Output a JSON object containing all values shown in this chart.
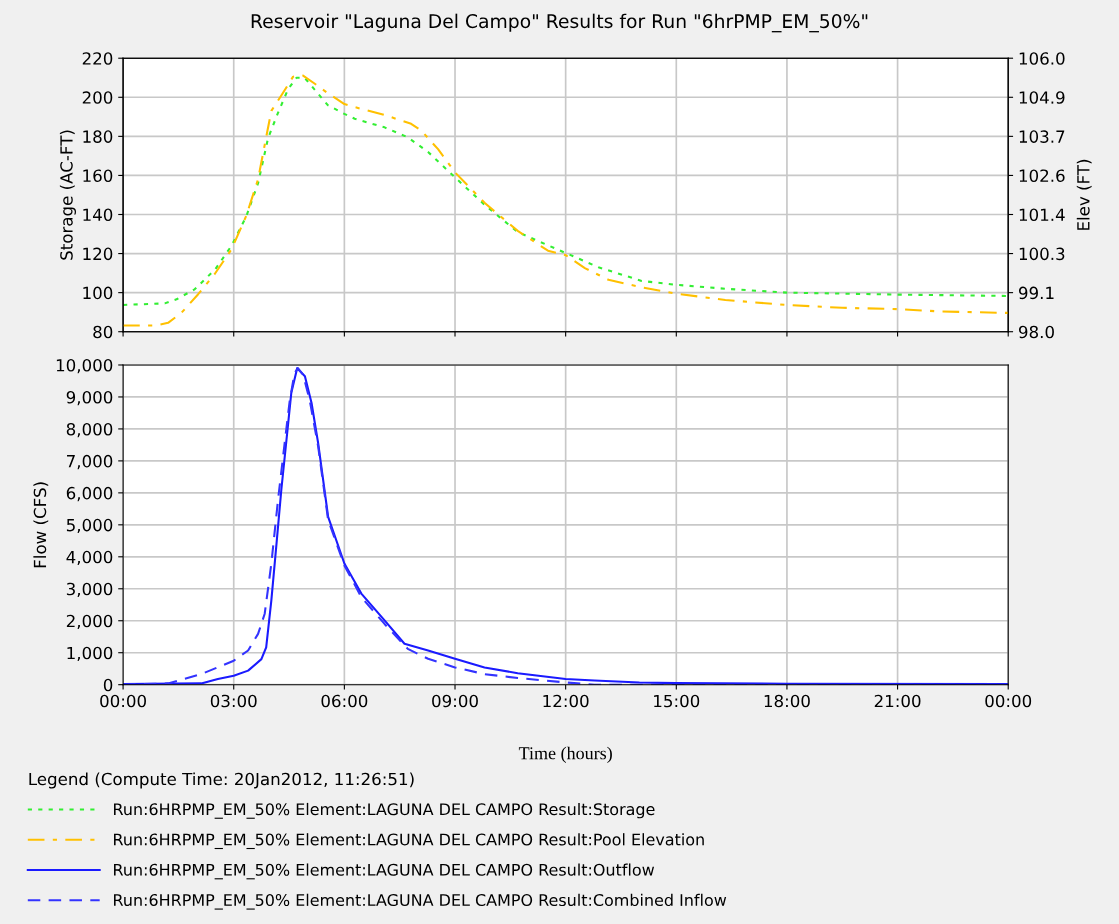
{
  "chart_data": [
    {
      "type": "line",
      "title": "Reservoir \"Laguna Del Campo\" Results for Run \"6hrPMP_EM_50%\"",
      "ylabel": "Storage (AC-FT)",
      "y2label": "Elev (FT)",
      "legend_title": "Legend (Compute Time: 20Jan2012, 11:26:51)",
      "legend": "bottom",
      "grid": true,
      "tick_labels": "y",
      "xlim": [
        0,
        24
      ],
      "xticks": [
        {
          "value": 0,
          "label": null
        },
        {
          "value": 3,
          "label": null
        },
        {
          "value": 6,
          "label": null
        },
        {
          "value": 9,
          "label": null
        },
        {
          "value": 12,
          "label": null
        },
        {
          "value": 15,
          "label": null
        },
        {
          "value": 18,
          "label": null
        },
        {
          "value": 21,
          "label": null
        },
        {
          "value": 24,
          "label": null
        }
      ],
      "ylim": [
        80,
        220
      ],
      "yticks": [
        80,
        100,
        120,
        140,
        160,
        180,
        200,
        220
      ],
      "y2lim": [
        98.0,
        106.0
      ],
      "y2ticks": [
        {
          "value": 98.0,
          "label": "98.0"
        },
        {
          "value": 99.142857,
          "label": "99.1"
        },
        {
          "value": 100.285714,
          "label": "100.3"
        },
        {
          "value": 101.428571,
          "label": "101.4"
        },
        {
          "value": 102.571429,
          "label": "102.6"
        },
        {
          "value": 103.714286,
          "label": "103.7"
        },
        {
          "value": 104.857143,
          "label": "104.9"
        },
        {
          "value": 106.0,
          "label": "106.0"
        }
      ],
      "series": [
        {
          "name": "Run:6HRPMP_EM_50% Element:LAGUNA DEL CAMPO Result:Storage",
          "color": "#33ee33",
          "line_style": "dotted",
          "x": [
            0,
            1.13,
            1.45,
            1.94,
            2.5,
            2.94,
            3.34,
            3.66,
            3.93,
            4.2,
            4.47,
            4.7,
            4.92,
            5.28,
            5.55,
            6,
            6.28,
            7.09,
            7.72,
            8.27,
            9,
            9.8,
            10.7,
            12,
            12.89,
            14.06,
            15,
            16.33,
            18,
            21,
            24
          ],
          "values": [
            93.7,
            94.5,
            96.6,
            101.7,
            112,
            124,
            139,
            156,
            179,
            192,
            204,
            210,
            210,
            202,
            196,
            191.5,
            189,
            184.6,
            179.5,
            172,
            159,
            145,
            131,
            120.3,
            113,
            106,
            104,
            102,
            100,
            99,
            98.3
          ]
        },
        {
          "name": "Run:6HRPMP_EM_50% Element:LAGUNA DEL CAMPO Result:Pool Elevation",
          "color": "#ffc000",
          "line_style": "dashdot",
          "axis": "y2",
          "x": [
            0,
            0.86,
            1.22,
            1.58,
            2.03,
            2.48,
            2.94,
            3.34,
            3.66,
            3.88,
            4.02,
            4.29,
            4.61,
            4.88,
            5.19,
            5.56,
            6,
            6.28,
            7.09,
            7.81,
            8.08,
            8.54,
            9,
            9.8,
            10.7,
            11.52,
            12,
            12.52,
            13.16,
            14.06,
            15,
            16.33,
            18,
            19.5,
            21,
            22.2,
            24
          ],
          "values": [
            98.18,
            98.18,
            98.26,
            98.55,
            99.09,
            99.68,
            100.41,
            101.39,
            102.46,
            103.69,
            104.46,
            104.91,
            105.46,
            105.49,
            105.26,
            104.97,
            104.66,
            104.57,
            104.34,
            104.08,
            103.89,
            103.34,
            102.66,
            101.77,
            100.95,
            100.37,
            100.24,
            99.86,
            99.52,
            99.3,
            99.11,
            98.93,
            98.78,
            98.7,
            98.66,
            98.59,
            98.55
          ]
        }
      ]
    },
    {
      "type": "line",
      "ylabel": "Flow (CFS)",
      "xlabel": "Time (hours)",
      "legend": "bottom",
      "grid": true,
      "xlim": [
        0,
        24
      ],
      "xticks": [
        {
          "value": 0,
          "label": "00:00"
        },
        {
          "value": 3,
          "label": "03:00"
        },
        {
          "value": 6,
          "label": "06:00"
        },
        {
          "value": 9,
          "label": "09:00"
        },
        {
          "value": 12,
          "label": "12:00"
        },
        {
          "value": 15,
          "label": "15:00"
        },
        {
          "value": 18,
          "label": "18:00"
        },
        {
          "value": 21,
          "label": "21:00"
        },
        {
          "value": 24,
          "label": "00:00"
        }
      ],
      "ylim": [
        0,
        10000
      ],
      "yticks": [
        {
          "value": 0,
          "label": "0"
        },
        {
          "value": 1000,
          "label": "1,000"
        },
        {
          "value": 2000,
          "label": "2,000"
        },
        {
          "value": 3000,
          "label": "3,000"
        },
        {
          "value": 4000,
          "label": "4,000"
        },
        {
          "value": 5000,
          "label": "5,000"
        },
        {
          "value": 6000,
          "label": "6,000"
        },
        {
          "value": 7000,
          "label": "7,000"
        },
        {
          "value": 8000,
          "label": "8,000"
        },
        {
          "value": 9000,
          "label": "9,000"
        },
        {
          "value": 10000,
          "label": "10,000"
        }
      ],
      "series": [
        {
          "name": "Run:6HRPMP_EM_50% Element:LAGUNA DEL CAMPO Result:Outflow",
          "color": "#1a1aff",
          "line_style": "solid",
          "x": [
            0,
            2.12,
            2.57,
            3,
            3.39,
            3.75,
            3.88,
            4.02,
            4.16,
            4.29,
            4.43,
            4.56,
            4.72,
            4.93,
            5.11,
            5.29,
            5.56,
            6,
            6.46,
            7.09,
            7.63,
            8.27,
            9,
            9.8,
            10.7,
            12,
            12.78,
            14,
            15,
            18,
            24
          ],
          "values": [
            20,
            40,
            180,
            280,
            440,
            800,
            1170,
            2640,
            4410,
            6090,
            7660,
            9120,
            9900,
            9650,
            8810,
            7550,
            5250,
            3790,
            2850,
            2010,
            1280,
            1070,
            810,
            540,
            360,
            180,
            130,
            70,
            50,
            30,
            20
          ]
        },
        {
          "name": "Run:6HRPMP_EM_50% Element:LAGUNA DEL CAMPO Result:Combined Inflow",
          "color": "#3333ff",
          "line_style": "dashed",
          "x": [
            0,
            1.22,
            2.12,
            3,
            3.39,
            3.66,
            3.84,
            4.02,
            4.2,
            4.38,
            4.52,
            4.65,
            4.74,
            4.88,
            5.06,
            5.29,
            5.56,
            6,
            6.46,
            7.09,
            7.72,
            8.27,
            9,
            9.8,
            10.7,
            12,
            12.78,
            24
          ],
          "values": [
            0,
            40,
            330,
            750,
            1070,
            1590,
            2220,
            3790,
            5770,
            7550,
            8900,
            9750,
            9900,
            9700,
            8900,
            7450,
            5150,
            3730,
            2740,
            1900,
            1120,
            810,
            540,
            330,
            210,
            70,
            0,
            0
          ]
        }
      ]
    }
  ]
}
